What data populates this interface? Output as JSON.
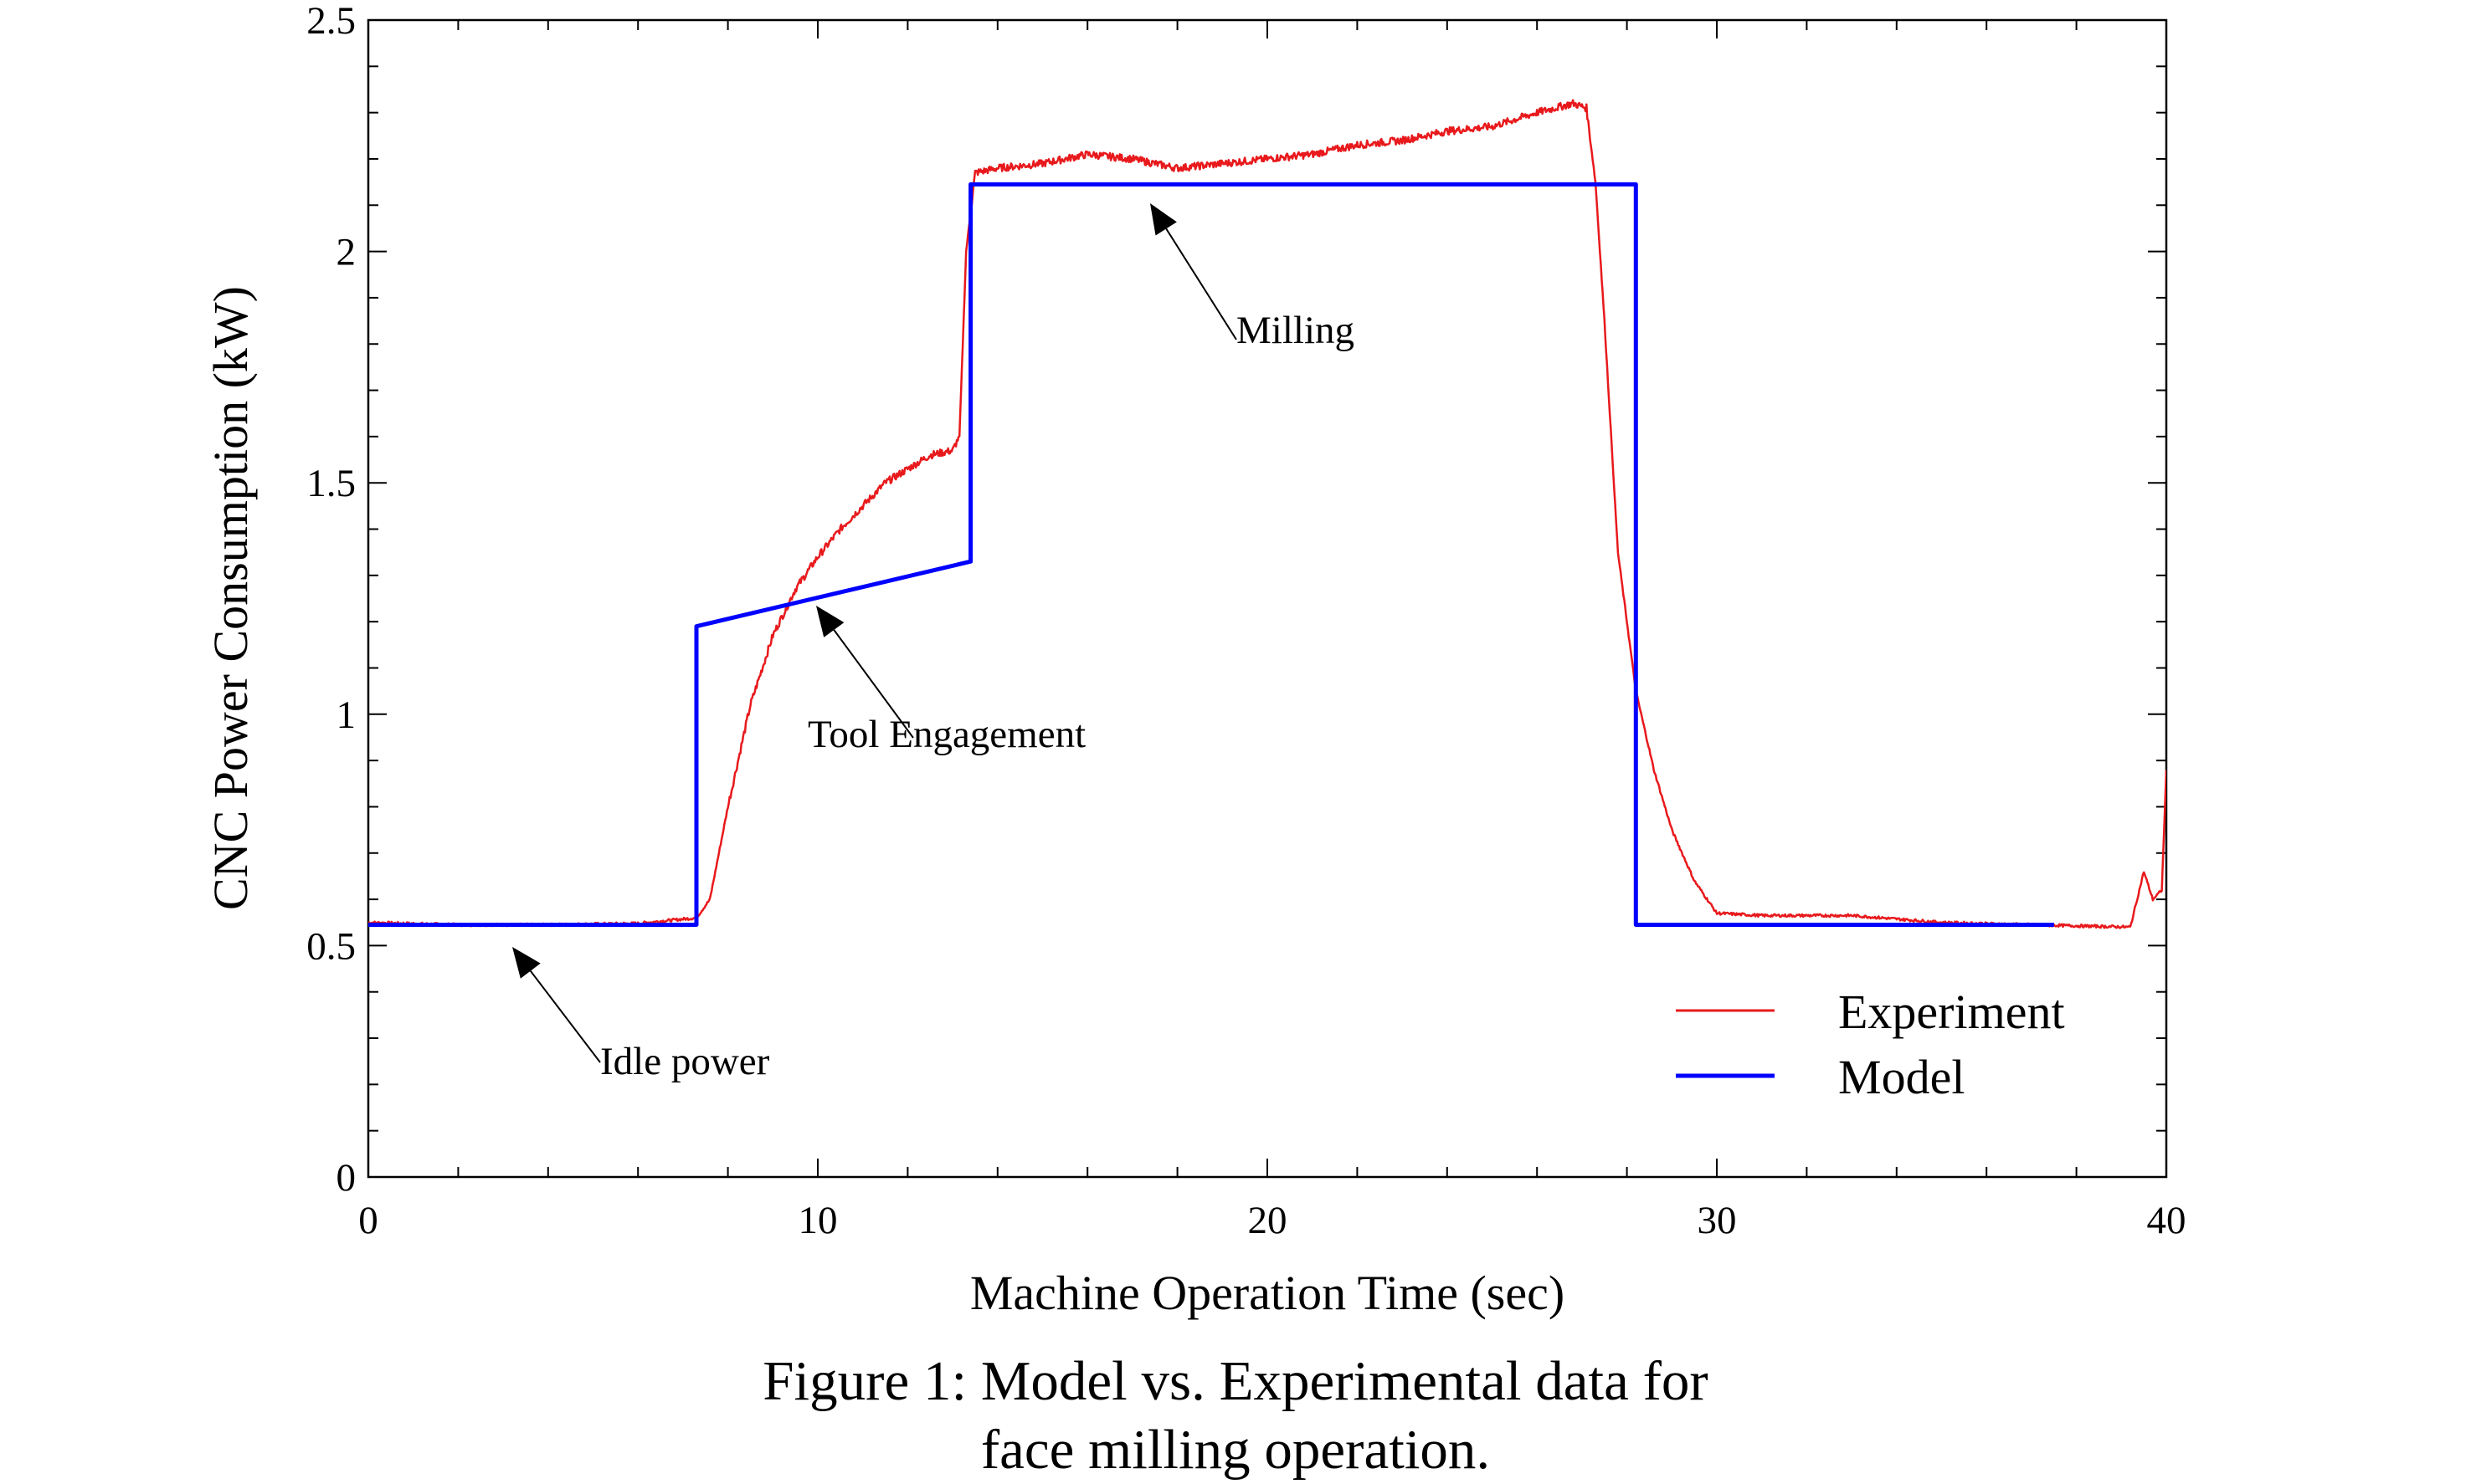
{
  "chart_data": {
    "type": "line",
    "xlabel": "Machine Operation Time (sec)",
    "ylabel": "CNC Power Consumption (kW)",
    "xlim": [
      0,
      40
    ],
    "ylim": [
      0,
      2.5
    ],
    "xticks": [
      "0",
      "10",
      "20",
      "30",
      "40"
    ],
    "yticks": [
      "0",
      "0.5",
      "1",
      "1.5",
      "2",
      "2.5"
    ],
    "grid": false,
    "legend_position": "bottom-right",
    "series": [
      {
        "name": "Experiment",
        "color": "#e8191c",
        "x": [
          0,
          2,
          4,
          6,
          7.3,
          7.6,
          8,
          8.5,
          9,
          9.5,
          10,
          10.5,
          11,
          11.5,
          12,
          12.5,
          13,
          13.15,
          13.3,
          13.5,
          14,
          15,
          16,
          17,
          18,
          19,
          20,
          21,
          22,
          23,
          24,
          25,
          26,
          26.8,
          27.1,
          27.3,
          27.5,
          27.8,
          28.2,
          28.6,
          29,
          29.5,
          30,
          31,
          33,
          35,
          37,
          39.2,
          39.5,
          39.7,
          39.9,
          40
        ],
        "y": [
          0.55,
          0.545,
          0.545,
          0.548,
          0.56,
          0.6,
          0.8,
          1.02,
          1.17,
          1.27,
          1.34,
          1.4,
          1.45,
          1.5,
          1.53,
          1.56,
          1.57,
          1.6,
          2.0,
          2.17,
          2.18,
          2.19,
          2.21,
          2.2,
          2.18,
          2.19,
          2.2,
          2.21,
          2.23,
          2.24,
          2.26,
          2.27,
          2.3,
          2.32,
          2.31,
          2.15,
          1.85,
          1.35,
          1.05,
          0.88,
          0.75,
          0.64,
          0.57,
          0.565,
          0.565,
          0.55,
          0.545,
          0.54,
          0.66,
          0.6,
          0.62,
          0.88
        ]
      },
      {
        "name": "Model",
        "color": "#0000ff",
        "x": [
          0,
          7.3,
          7.3,
          13.4,
          13.4,
          28.2,
          28.2,
          37.5
        ],
        "y": [
          0.545,
          0.545,
          1.19,
          1.33,
          2.145,
          2.145,
          0.545,
          0.545
        ]
      }
    ],
    "annotations": [
      {
        "text": "Idle power",
        "x": 3.2,
        "y": 0.47
      },
      {
        "text": "Tool Engagement",
        "x": 10.0,
        "y": 1.24
      },
      {
        "text": "Milling",
        "x": 17.4,
        "y": 2.07
      }
    ]
  },
  "caption": {
    "line1": "Figure 1: Model vs. Experimental data for",
    "line2": "face milling operation."
  }
}
